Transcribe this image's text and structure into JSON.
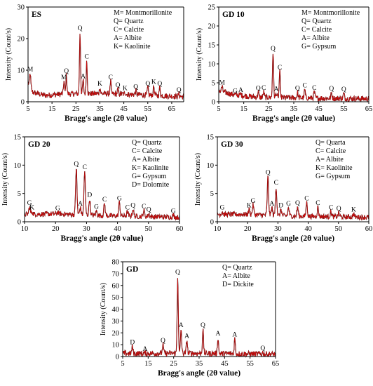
{
  "figure": {
    "xlabel": "Bragg's angle (2θ value)",
    "ylabel": "Intensity (Count/s)"
  },
  "chart_data": [
    {
      "type": "line",
      "title": "ES",
      "xlabel": "Bragg's angle (2θ value)",
      "ylabel": "Intensity (Count/s)",
      "xlim": [
        5,
        70
      ],
      "ylim": [
        0,
        30
      ],
      "xticks": [
        5,
        15,
        25,
        35,
        45,
        55,
        65
      ],
      "yticks": [
        0,
        10,
        20,
        30
      ],
      "legend": [
        "M= Montmorillonite",
        "Q= Quartz",
        "C= Calcite",
        "A= Albite",
        "K= Kaolinite"
      ],
      "baseline": [
        [
          5,
          6.0
        ],
        [
          7,
          3.0
        ],
        [
          12,
          2.0
        ],
        [
          20,
          2.5
        ],
        [
          35,
          2.6
        ],
        [
          50,
          2.3
        ],
        [
          70,
          1.6
        ]
      ],
      "series": [
        {
          "peaks": [
            {
              "label": "M",
              "x": 5.9,
              "y": 9.0
            },
            {
              "label": "M",
              "x": 20.0,
              "y": 6.5
            },
            {
              "label": "Q",
              "x": 21.0,
              "y": 8.5
            },
            {
              "label": "Q",
              "x": 26.7,
              "y": 22.0
            },
            {
              "label": "A",
              "x": 28.0,
              "y": 6.8
            },
            {
              "label": "C",
              "x": 29.5,
              "y": 13.0
            },
            {
              "label": "K",
              "x": 35.0,
              "y": 4.5
            },
            {
              "label": "C",
              "x": 39.5,
              "y": 6.5
            },
            {
              "label": "Q",
              "x": 42.5,
              "y": 4.0
            },
            {
              "label": "K",
              "x": 45.5,
              "y": 3.0
            },
            {
              "label": "Q",
              "x": 50.0,
              "y": 3.5
            },
            {
              "label": "Q",
              "x": 55.0,
              "y": 4.5
            },
            {
              "label": "K",
              "x": 57.5,
              "y": 5.0
            },
            {
              "label": "Q",
              "x": 60.0,
              "y": 4.5
            },
            {
              "label": "Q",
              "x": 68.0,
              "y": 2.5
            }
          ]
        }
      ]
    },
    {
      "type": "line",
      "title": "GD 10",
      "xlabel": "Bragg's angle (2θ value)",
      "ylabel": "Intensity (Count/s)",
      "xlim": [
        5,
        65
      ],
      "ylim": [
        0,
        25
      ],
      "xticks": [
        5,
        15,
        25,
        35,
        45,
        55,
        65
      ],
      "yticks": [
        0,
        5,
        10,
        15,
        20,
        25
      ],
      "legend": [
        "M= Montmorillonite",
        "Q= Quartz",
        "C= Calcite",
        "A= Albite",
        "G= Gypsum"
      ],
      "baseline": [
        [
          5,
          3.0
        ],
        [
          10,
          2.0
        ],
        [
          20,
          1.2
        ],
        [
          40,
          1.0
        ],
        [
          65,
          0.8
        ]
      ],
      "series": [
        {
          "peaks": [
            {
              "label": "M",
              "x": 6.3,
              "y": 4.0
            },
            {
              "label": "G",
              "x": 11.6,
              "y": 1.8
            },
            {
              "label": "A",
              "x": 13.8,
              "y": 2.0
            },
            {
              "label": "Q",
              "x": 20.8,
              "y": 2.5
            },
            {
              "label": "C",
              "x": 23.0,
              "y": 2.6
            },
            {
              "label": "Q",
              "x": 26.7,
              "y": 13.0
            },
            {
              "label": "A",
              "x": 28.0,
              "y": 2.3
            },
            {
              "label": "C",
              "x": 29.4,
              "y": 8.0
            },
            {
              "label": "Q",
              "x": 36.5,
              "y": 2.5
            },
            {
              "label": "C",
              "x": 39.4,
              "y": 3.2
            },
            {
              "label": "C",
              "x": 43.2,
              "y": 2.6
            },
            {
              "label": "Q",
              "x": 50.1,
              "y": 2.4
            },
            {
              "label": "Q",
              "x": 55.0,
              "y": 2.2
            }
          ]
        }
      ]
    },
    {
      "type": "line",
      "title": "GD 20",
      "xlabel": "Bragg's angle (2θ value)",
      "ylabel": "Intensity (Count/s)",
      "xlim": [
        10,
        60
      ],
      "ylim": [
        0,
        15
      ],
      "xticks": [
        10,
        20,
        30,
        40,
        50,
        60
      ],
      "yticks": [
        0,
        5,
        10,
        15
      ],
      "legend": [
        "Q= Quartz",
        "C= Calcite",
        "A= Albite",
        "K= Kaolinite",
        "G= Gypsum",
        "D= Dolomite"
      ],
      "baseline": [
        [
          10,
          1.3
        ],
        [
          20,
          1.4
        ],
        [
          35,
          1.1
        ],
        [
          60,
          0.8
        ]
      ],
      "series": [
        {
          "peaks": [
            {
              "label": "G",
              "x": 11.6,
              "y": 2.6
            },
            {
              "label": "K",
              "x": 12.4,
              "y": 1.8
            },
            {
              "label": "G",
              "x": 20.7,
              "y": 1.7
            },
            {
              "label": "Q",
              "x": 26.7,
              "y": 9.5
            },
            {
              "label": "A",
              "x": 28.0,
              "y": 2.5
            },
            {
              "label": "C",
              "x": 29.4,
              "y": 8.9
            },
            {
              "label": "D",
              "x": 31.0,
              "y": 4.0
            },
            {
              "label": "G",
              "x": 33.2,
              "y": 1.9
            },
            {
              "label": "C",
              "x": 35.8,
              "y": 3.2
            },
            {
              "label": "G",
              "x": 40.6,
              "y": 3.4
            },
            {
              "label": "C",
              "x": 43.2,
              "y": 1.8
            },
            {
              "label": "Q",
              "x": 45.0,
              "y": 2.2
            },
            {
              "label": "C",
              "x": 48.5,
              "y": 2.0
            },
            {
              "label": "Q",
              "x": 50.1,
              "y": 1.4
            },
            {
              "label": "G",
              "x": 58.0,
              "y": 1.2
            }
          ]
        }
      ]
    },
    {
      "type": "line",
      "title": "GD 30",
      "xlabel": "Bragg's angle (2θ value)",
      "ylabel": "Intensity (Count/s)",
      "xlim": [
        10,
        60
      ],
      "ylim": [
        0,
        15
      ],
      "xticks": [
        10,
        20,
        30,
        40,
        50,
        60
      ],
      "yticks": [
        0,
        5,
        10,
        15
      ],
      "legend": [
        "Q= Quarta",
        "C= Calcite",
        "A= Albite",
        "K= Kaolinite",
        "G= Gypsum"
      ],
      "baseline": [
        [
          10,
          1.3
        ],
        [
          20,
          1.3
        ],
        [
          35,
          1.0
        ],
        [
          60,
          0.8
        ]
      ],
      "series": [
        {
          "peaks": [
            {
              "label": "G",
              "x": 11.6,
              "y": 1.8
            },
            {
              "label": "K",
              "x": 20.5,
              "y": 2.2
            },
            {
              "label": "G",
              "x": 21.8,
              "y": 3.0
            },
            {
              "label": "Q",
              "x": 26.7,
              "y": 8.0
            },
            {
              "label": "A",
              "x": 28.0,
              "y": 2.5
            },
            {
              "label": "C",
              "x": 29.4,
              "y": 6.2
            },
            {
              "label": "D",
              "x": 31.0,
              "y": 2.2
            },
            {
              "label": "G",
              "x": 33.5,
              "y": 2.5
            },
            {
              "label": "Q",
              "x": 36.5,
              "y": 2.6
            },
            {
              "label": "C",
              "x": 39.5,
              "y": 3.4
            },
            {
              "label": "C",
              "x": 43.2,
              "y": 2.6
            },
            {
              "label": "C",
              "x": 47.5,
              "y": 1.8
            },
            {
              "label": "Q",
              "x": 50.1,
              "y": 1.6
            },
            {
              "label": "K",
              "x": 55.0,
              "y": 1.4
            }
          ]
        }
      ]
    },
    {
      "type": "line",
      "title": "GD",
      "xlabel": "Bragg's angle (2θ value)",
      "ylabel": "Intensity (Count/s)",
      "xlim": [
        5,
        65
      ],
      "ylim": [
        0,
        80
      ],
      "xticks": [
        5,
        15,
        25,
        35,
        45,
        55,
        65
      ],
      "yticks": [
        0,
        10,
        20,
        30,
        40,
        50,
        60,
        70,
        80
      ],
      "legend": [
        "Q= Quartz",
        "A= Albite",
        "D= Dickite"
      ],
      "baseline": [
        [
          5,
          2.5
        ],
        [
          30,
          2.8
        ],
        [
          65,
          2.0
        ]
      ],
      "series": [
        {
          "peaks": [
            {
              "label": "D",
              "x": 8.8,
              "y": 8.5
            },
            {
              "label": "A",
              "x": 13.8,
              "y": 3.0
            },
            {
              "label": "Q",
              "x": 20.8,
              "y": 10.0
            },
            {
              "label": "Q",
              "x": 26.6,
              "y": 68.0
            },
            {
              "label": "A",
              "x": 27.9,
              "y": 23.0
            },
            {
              "label": "A",
              "x": 30.2,
              "y": 14.0
            },
            {
              "label": "Q",
              "x": 36.5,
              "y": 23.0
            },
            {
              "label": "A",
              "x": 42.4,
              "y": 16.0
            },
            {
              "label": "A",
              "x": 49.0,
              "y": 15.0
            },
            {
              "label": "Q",
              "x": 60.0,
              "y": 3.5
            }
          ]
        }
      ]
    }
  ]
}
